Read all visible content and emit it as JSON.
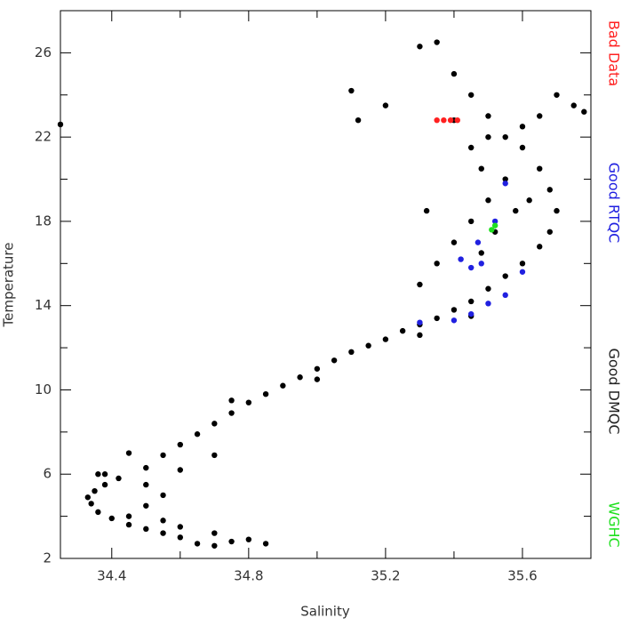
{
  "chart_data": {
    "type": "scatter",
    "x_label": "Salinity",
    "y_label": "Temperature",
    "xlim": [
      34.25,
      35.8
    ],
    "ylim": [
      2,
      28
    ],
    "xticks": [
      34.4,
      34.8,
      35.2,
      35.6
    ],
    "xminor_ticks": [
      34.6,
      35.0,
      35.4
    ],
    "yticks": [
      2,
      6,
      10,
      14,
      18,
      22,
      26
    ],
    "yminor_ticks": [
      4,
      8,
      12,
      16,
      20,
      24
    ],
    "series": [
      {
        "name": "Good DMQC",
        "color": "#000000",
        "x": [
          34.85,
          34.8,
          34.75,
          34.7,
          34.65,
          34.6,
          34.55,
          34.5,
          34.45,
          34.4,
          34.36,
          34.34,
          34.33,
          34.35,
          34.38,
          34.42,
          34.36,
          34.5,
          34.55,
          34.6,
          34.65,
          34.7,
          34.75,
          34.8,
          34.85,
          34.9,
          34.95,
          35.0,
          35.05,
          35.1,
          35.15,
          35.2,
          35.25,
          35.3,
          35.35,
          35.4,
          35.45,
          35.5,
          35.55,
          35.6,
          35.65,
          35.68,
          35.7,
          35.68,
          35.65,
          35.6,
          35.55,
          35.5,
          35.45,
          35.4,
          35.35,
          35.3,
          35.48,
          35.52,
          35.58,
          35.62,
          35.55,
          35.5,
          35.45,
          35.4,
          35.35,
          35.3,
          35.7,
          35.75,
          35.78,
          35.65,
          35.6,
          35.2,
          35.12,
          35.1,
          35.32,
          34.25,
          34.38,
          34.5,
          34.55,
          34.5,
          34.45,
          34.6,
          34.7,
          34.55,
          34.7,
          34.6,
          34.45,
          34.75,
          35.0,
          35.3,
          35.45,
          35.5,
          35.45,
          35.4,
          35.48
        ],
        "y": [
          2.7,
          2.9,
          2.8,
          2.6,
          2.7,
          3.0,
          3.2,
          3.4,
          3.6,
          3.9,
          4.2,
          4.6,
          4.9,
          5.2,
          5.5,
          5.8,
          6.0,
          6.3,
          6.9,
          7.4,
          7.9,
          8.4,
          8.9,
          9.4,
          9.8,
          10.2,
          10.6,
          11.0,
          11.4,
          11.8,
          12.1,
          12.4,
          12.8,
          13.1,
          13.4,
          13.8,
          14.2,
          14.8,
          15.4,
          16.0,
          16.8,
          17.5,
          18.5,
          19.5,
          20.5,
          21.5,
          20,
          19,
          18,
          17,
          16,
          15,
          16.5,
          17.5,
          18.5,
          19,
          22,
          23,
          24,
          25,
          26.5,
          26.3,
          24,
          23.5,
          23.2,
          23.0,
          22.5,
          23.5,
          22.8,
          24.2,
          18.5,
          22.6,
          6.0,
          5.5,
          5.0,
          4.5,
          4.0,
          3.5,
          3.2,
          3.8,
          6.9,
          6.2,
          7.0,
          9.5,
          10.5,
          12.6,
          13.5,
          22,
          21.5,
          22.8,
          20.5
        ]
      },
      {
        "name": "Good RTQC",
        "color": "#2020e0",
        "x": [
          35.48,
          35.52,
          35.55,
          35.45,
          35.55,
          35.5,
          35.45,
          35.4,
          35.3,
          35.6,
          35.47,
          35.42
        ],
        "y": [
          16,
          18,
          19.8,
          15.8,
          14.5,
          14.1,
          13.6,
          13.3,
          13.2,
          15.6,
          17,
          16.2
        ]
      },
      {
        "name": "Bad Data",
        "color": "#ff2020",
        "x": [
          35.35,
          35.37,
          35.39,
          35.41
        ],
        "y": [
          22.8,
          22.8,
          22.8,
          22.8
        ]
      },
      {
        "name": "WGHC",
        "color": "#20e020",
        "x": [
          35.51,
          35.52
        ],
        "y": [
          17.6,
          17.8
        ]
      }
    ]
  }
}
